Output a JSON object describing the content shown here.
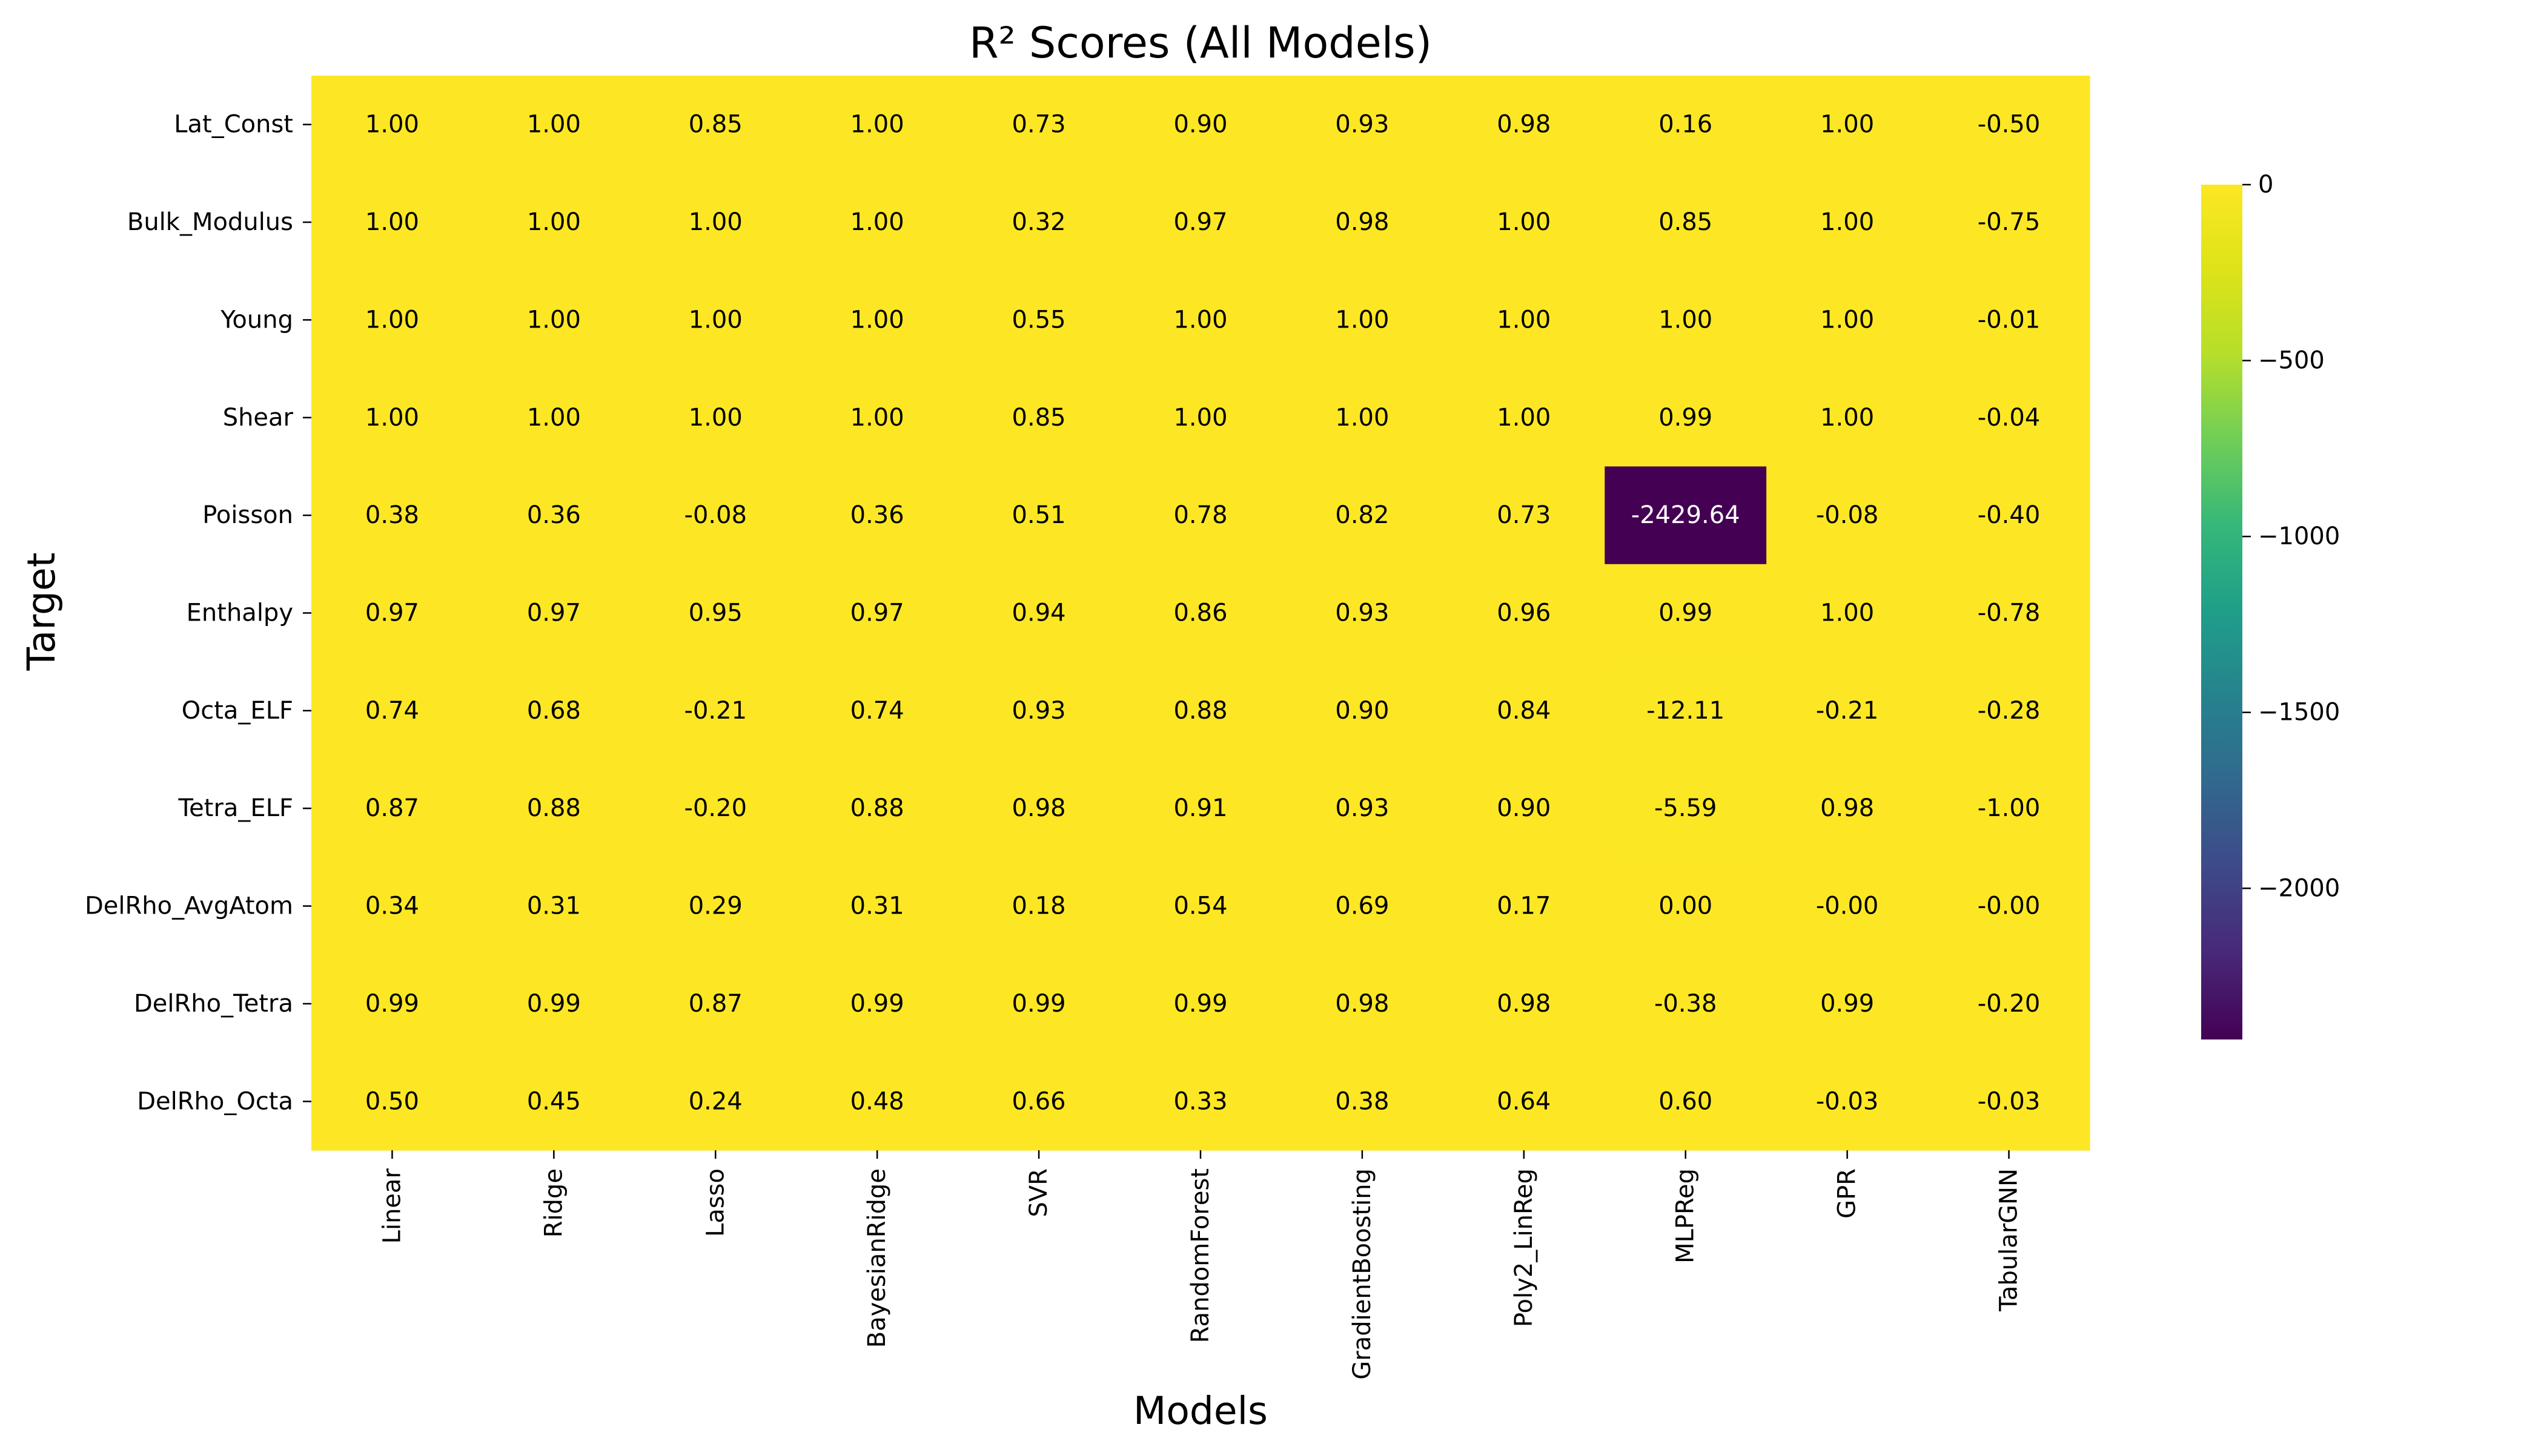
{
  "chart_data": {
    "type": "heatmap",
    "title": "R² Scores (All Models)",
    "xlabel": "Models",
    "ylabel": "Target",
    "rows": [
      "Lat_Const",
      "Bulk_Modulus",
      "Young",
      "Shear",
      "Poisson",
      "Enthalpy",
      "Octa_ELF",
      "Tetra_ELF",
      "DelRho_AvgAtom",
      "DelRho_Tetra",
      "DelRho_Octa"
    ],
    "columns": [
      "Linear",
      "Ridge",
      "Lasso",
      "BayesianRidge",
      "SVR",
      "RandomForest",
      "GradientBoosting",
      "Poly2_LinReg",
      "MLPReg",
      "GPR",
      "TabularGNN"
    ],
    "values": [
      [
        1.0,
        1.0,
        0.85,
        1.0,
        0.73,
        0.9,
        0.93,
        0.98,
        0.16,
        1.0,
        -0.5
      ],
      [
        1.0,
        1.0,
        1.0,
        1.0,
        0.32,
        0.97,
        0.98,
        1.0,
        0.85,
        1.0,
        -0.75
      ],
      [
        1.0,
        1.0,
        1.0,
        1.0,
        0.55,
        1.0,
        1.0,
        1.0,
        1.0,
        1.0,
        -0.01
      ],
      [
        1.0,
        1.0,
        1.0,
        1.0,
        0.85,
        1.0,
        1.0,
        1.0,
        0.99,
        1.0,
        -0.04
      ],
      [
        0.38,
        0.36,
        -0.08,
        0.36,
        0.51,
        0.78,
        0.82,
        0.73,
        -2429.64,
        -0.08,
        -0.4
      ],
      [
        0.97,
        0.97,
        0.95,
        0.97,
        0.94,
        0.86,
        0.93,
        0.96,
        0.99,
        1.0,
        -0.78
      ],
      [
        0.74,
        0.68,
        -0.21,
        0.74,
        0.93,
        0.88,
        0.9,
        0.84,
        -12.11,
        -0.21,
        -0.28
      ],
      [
        0.87,
        0.88,
        -0.2,
        0.88,
        0.98,
        0.91,
        0.93,
        0.9,
        -5.59,
        0.98,
        -1.0
      ],
      [
        0.34,
        0.31,
        0.29,
        0.31,
        0.18,
        0.54,
        0.69,
        0.17,
        0.0,
        -0.0,
        -0.0
      ],
      [
        0.99,
        0.99,
        0.87,
        0.99,
        0.99,
        0.99,
        0.98,
        0.98,
        -0.38,
        0.99,
        -0.2
      ],
      [
        0.5,
        0.45,
        0.24,
        0.48,
        0.66,
        0.33,
        0.38,
        0.64,
        0.6,
        -0.03,
        -0.03
      ]
    ],
    "value_labels": [
      [
        "1.00",
        "1.00",
        "0.85",
        "1.00",
        "0.73",
        "0.90",
        "0.93",
        "0.98",
        "0.16",
        "1.00",
        "-0.50"
      ],
      [
        "1.00",
        "1.00",
        "1.00",
        "1.00",
        "0.32",
        "0.97",
        "0.98",
        "1.00",
        "0.85",
        "1.00",
        "-0.75"
      ],
      [
        "1.00",
        "1.00",
        "1.00",
        "1.00",
        "0.55",
        "1.00",
        "1.00",
        "1.00",
        "1.00",
        "1.00",
        "-0.01"
      ],
      [
        "1.00",
        "1.00",
        "1.00",
        "1.00",
        "0.85",
        "1.00",
        "1.00",
        "1.00",
        "0.99",
        "1.00",
        "-0.04"
      ],
      [
        "0.38",
        "0.36",
        "-0.08",
        "0.36",
        "0.51",
        "0.78",
        "0.82",
        "0.73",
        "-2429.64",
        "-0.08",
        "-0.40"
      ],
      [
        "0.97",
        "0.97",
        "0.95",
        "0.97",
        "0.94",
        "0.86",
        "0.93",
        "0.96",
        "0.99",
        "1.00",
        "-0.78"
      ],
      [
        "0.74",
        "0.68",
        "-0.21",
        "0.74",
        "0.93",
        "0.88",
        "0.90",
        "0.84",
        "-12.11",
        "-0.21",
        "-0.28"
      ],
      [
        "0.87",
        "0.88",
        "-0.20",
        "0.88",
        "0.98",
        "0.91",
        "0.93",
        "0.90",
        "-5.59",
        "0.98",
        "-1.00"
      ],
      [
        "0.34",
        "0.31",
        "0.29",
        "0.31",
        "0.18",
        "0.54",
        "0.69",
        "0.17",
        "0.00",
        "-0.00",
        "-0.00"
      ],
      [
        "0.99",
        "0.99",
        "0.87",
        "0.99",
        "0.99",
        "0.99",
        "0.98",
        "0.98",
        "-0.38",
        "0.99",
        "-0.20"
      ],
      [
        "0.50",
        "0.45",
        "0.24",
        "0.48",
        "0.66",
        "0.33",
        "0.38",
        "0.64",
        "0.60",
        "-0.03",
        "-0.03"
      ]
    ],
    "colorbar": {
      "colormap": "viridis",
      "vmin": -2429.64,
      "vmax": 0,
      "ticks": [
        0,
        -500,
        -1000,
        -1500,
        -2000
      ],
      "tick_labels": [
        "0",
        "−500",
        "−1000",
        "−1500",
        "−2000"
      ]
    },
    "colors": {
      "high": "#fde725",
      "low": "#440154",
      "light_text": "#000000",
      "dark_text": "#ffffff"
    }
  }
}
